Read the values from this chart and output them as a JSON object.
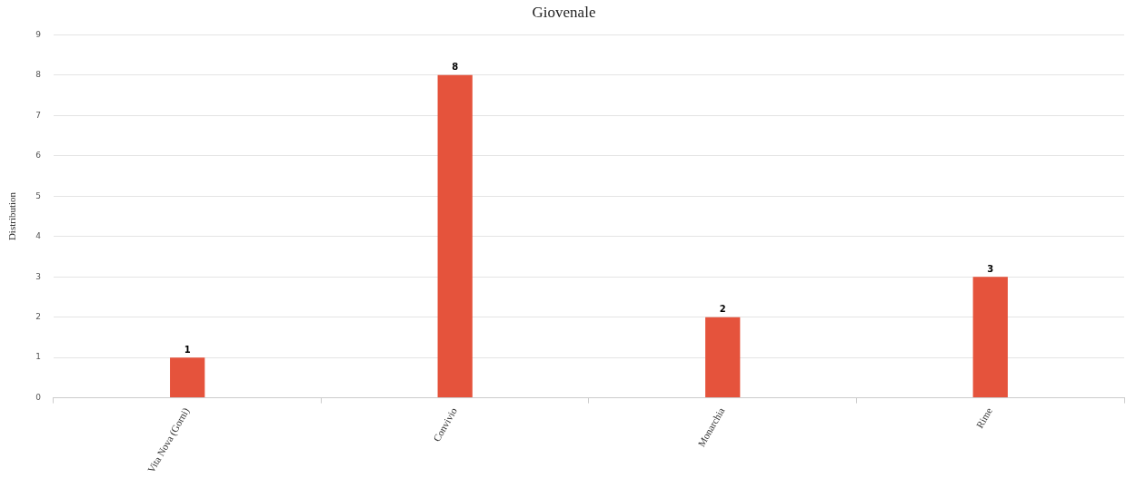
{
  "chart_data": {
    "type": "bar",
    "title": "Giovenale",
    "ylabel": "Distribution",
    "categories": [
      "Vita Nova (Gorni)",
      "Convivio",
      "Monarchia",
      "Rime"
    ],
    "values": [
      1,
      8,
      2,
      3
    ],
    "color": "#e5533c",
    "ylim": [
      0,
      9
    ],
    "yticks": [
      0,
      1,
      2,
      3,
      4,
      5,
      6,
      7,
      8,
      9
    ],
    "grid": "y",
    "data_labels": true
  }
}
